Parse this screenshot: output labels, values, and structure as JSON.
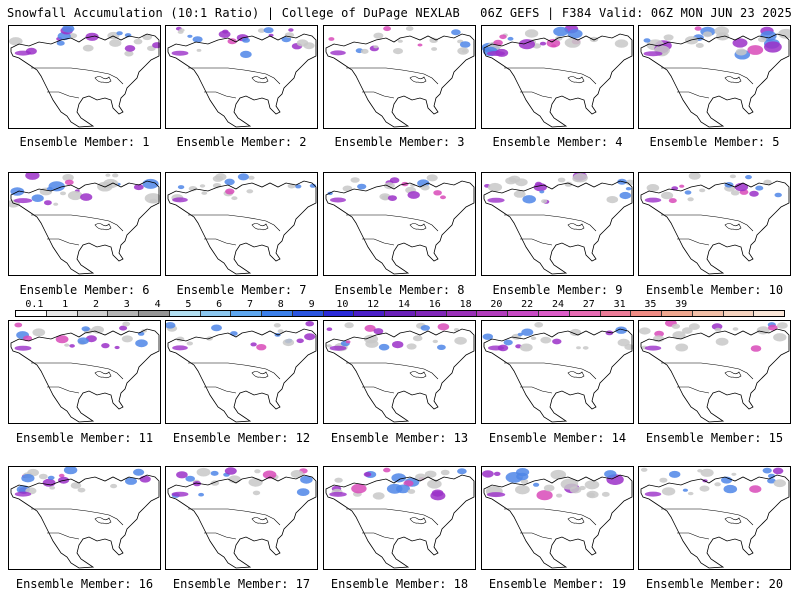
{
  "header": {
    "title_left": "Snowfall Accumulation (10:1 Ratio) | College of DuPage NEXLAB",
    "title_right": "06Z GEFS | F384 Valid: 06Z MON JUN 23 2025"
  },
  "label_prefix": "Ensemble Member: ",
  "members": [
    {
      "id": 1,
      "label": "Ensemble Member: 1",
      "intensity": 0.55
    },
    {
      "id": 2,
      "label": "Ensemble Member: 2",
      "intensity": 0.6
    },
    {
      "id": 3,
      "label": "Ensemble Member: 3",
      "intensity": 0.45
    },
    {
      "id": 4,
      "label": "Ensemble Member: 4",
      "intensity": 0.75
    },
    {
      "id": 5,
      "label": "Ensemble Member: 5",
      "intensity": 0.85
    },
    {
      "id": 6,
      "label": "Ensemble Member: 6",
      "intensity": 0.8
    },
    {
      "id": 7,
      "label": "Ensemble Member: 7",
      "intensity": 0.45
    },
    {
      "id": 8,
      "label": "Ensemble Member: 8",
      "intensity": 0.5
    },
    {
      "id": 9,
      "label": "Ensemble Member: 9",
      "intensity": 0.65
    },
    {
      "id": 10,
      "label": "Ensemble Member: 10",
      "intensity": 0.55
    },
    {
      "id": 11,
      "label": "Ensemble Member: 11",
      "intensity": 0.6
    },
    {
      "id": 12,
      "label": "Ensemble Member: 12",
      "intensity": 0.45
    },
    {
      "id": 13,
      "label": "Ensemble Member: 13",
      "intensity": 0.6
    },
    {
      "id": 14,
      "label": "Ensemble Member: 14",
      "intensity": 0.5
    },
    {
      "id": 15,
      "label": "Ensemble Member: 15",
      "intensity": 0.55
    },
    {
      "id": 16,
      "label": "Ensemble Member: 16",
      "intensity": 0.55
    },
    {
      "id": 17,
      "label": "Ensemble Member: 17",
      "intensity": 0.6
    },
    {
      "id": 18,
      "label": "Ensemble Member: 18",
      "intensity": 0.7
    },
    {
      "id": 19,
      "label": "Ensemble Member: 19",
      "intensity": 0.8
    },
    {
      "id": 20,
      "label": "Ensemble Member: 20",
      "intensity": 0.55
    }
  ],
  "legend": {
    "ticks": [
      "0.1",
      "1",
      "2",
      "3",
      "4",
      "5",
      "6",
      "7",
      "8",
      "9",
      "10",
      "12",
      "14",
      "16",
      "18",
      "20",
      "22",
      "24",
      "27",
      "31",
      "35",
      "39"
    ],
    "colors": [
      "#ffffff",
      "#e8e8e8",
      "#cfcfcf",
      "#b4b4b4",
      "#969696",
      "#b3e0f2",
      "#8cc8f0",
      "#5fa8f0",
      "#3c80ea",
      "#2a55e0",
      "#2a2ad8",
      "#4b1fc8",
      "#6a20b8",
      "#8026b8",
      "#9a30b8",
      "#b23cbc",
      "#c84ac4",
      "#dc5cc8",
      "#e86cb4",
      "#ec7c98",
      "#f08c84",
      "#f0a890",
      "#f2c0a8",
      "#f6d4c0",
      "#fae6d8"
    ]
  },
  "colors": {
    "border": "#000000",
    "snow_light": "#c8c8c8",
    "snow_blue": "#4f86e8",
    "snow_purple": "#9b30c8",
    "snow_magenta": "#d84ab8"
  }
}
